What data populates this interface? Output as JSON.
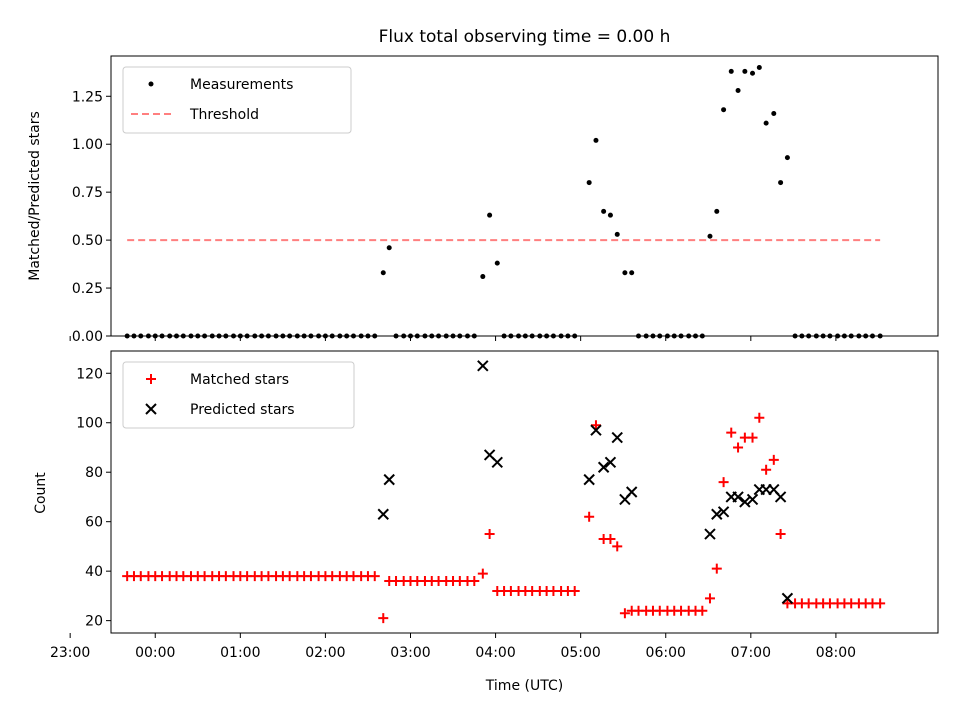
{
  "title": "Flux total observing time = 0.00 h",
  "colors": {
    "measurement": "#000000",
    "threshold": "#ff7f7f",
    "matched": "#ff0000",
    "predicted": "#000000"
  },
  "chart_data": [
    {
      "type": "scatter",
      "title": "Flux total observing time = 0.00 h",
      "xlabel": "",
      "ylabel": "Matched/Predicted stars",
      "x_unit": "hours from 00:00 UTC",
      "xlim": [
        -0.52,
        9.2
      ],
      "ylim": [
        0,
        1.46
      ],
      "yticks": [
        "0.00",
        "0.25",
        "0.50",
        "0.75",
        "1.00",
        "1.25"
      ],
      "legend": {
        "position": "top-left",
        "entries": [
          "Measurements",
          "Threshold"
        ]
      },
      "series": [
        {
          "name": "Measurements",
          "marker": "dot",
          "points": [
            [
              -0.33,
              0
            ],
            [
              -0.25,
              0
            ],
            [
              -0.17,
              0
            ],
            [
              -0.08,
              0
            ],
            [
              0.0,
              0
            ],
            [
              0.08,
              0
            ],
            [
              0.17,
              0
            ],
            [
              0.25,
              0
            ],
            [
              0.33,
              0
            ],
            [
              0.42,
              0
            ],
            [
              0.5,
              0
            ],
            [
              0.58,
              0
            ],
            [
              0.67,
              0
            ],
            [
              0.75,
              0
            ],
            [
              0.83,
              0
            ],
            [
              0.92,
              0
            ],
            [
              1.0,
              0
            ],
            [
              1.08,
              0
            ],
            [
              1.17,
              0
            ],
            [
              1.25,
              0
            ],
            [
              1.33,
              0
            ],
            [
              1.42,
              0
            ],
            [
              1.5,
              0
            ],
            [
              1.58,
              0
            ],
            [
              1.67,
              0
            ],
            [
              1.75,
              0
            ],
            [
              1.83,
              0
            ],
            [
              1.92,
              0
            ],
            [
              2.0,
              0
            ],
            [
              2.08,
              0
            ],
            [
              2.17,
              0
            ],
            [
              2.25,
              0
            ],
            [
              2.33,
              0
            ],
            [
              2.42,
              0
            ],
            [
              2.5,
              0
            ],
            [
              2.58,
              0
            ],
            [
              2.68,
              0.33
            ],
            [
              2.75,
              0.46
            ],
            [
              2.83,
              0
            ],
            [
              2.92,
              0
            ],
            [
              3.0,
              0
            ],
            [
              3.08,
              0
            ],
            [
              3.17,
              0
            ],
            [
              3.25,
              0
            ],
            [
              3.33,
              0
            ],
            [
              3.42,
              0
            ],
            [
              3.5,
              0
            ],
            [
              3.58,
              0
            ],
            [
              3.67,
              0
            ],
            [
              3.75,
              0
            ],
            [
              3.85,
              0.31
            ],
            [
              3.93,
              0.63
            ],
            [
              4.02,
              0.38
            ],
            [
              4.1,
              0
            ],
            [
              4.18,
              0
            ],
            [
              4.27,
              0
            ],
            [
              4.35,
              0
            ],
            [
              4.43,
              0
            ],
            [
              4.52,
              0
            ],
            [
              4.6,
              0
            ],
            [
              4.68,
              0
            ],
            [
              4.77,
              0
            ],
            [
              4.85,
              0
            ],
            [
              4.93,
              0
            ],
            [
              5.1,
              0.8
            ],
            [
              5.18,
              1.02
            ],
            [
              5.27,
              0.65
            ],
            [
              5.35,
              0.63
            ],
            [
              5.43,
              0.53
            ],
            [
              5.52,
              0.33
            ],
            [
              5.6,
              0.33
            ],
            [
              5.68,
              0
            ],
            [
              5.77,
              0
            ],
            [
              5.85,
              0
            ],
            [
              5.93,
              0
            ],
            [
              6.02,
              0
            ],
            [
              6.1,
              0
            ],
            [
              6.18,
              0
            ],
            [
              6.27,
              0
            ],
            [
              6.35,
              0
            ],
            [
              6.43,
              0
            ],
            [
              6.52,
              0.52
            ],
            [
              6.6,
              0.65
            ],
            [
              6.68,
              1.18
            ],
            [
              6.77,
              1.38
            ],
            [
              6.85,
              1.28
            ],
            [
              6.93,
              1.38
            ],
            [
              7.02,
              1.37
            ],
            [
              7.1,
              1.4
            ],
            [
              7.18,
              1.11
            ],
            [
              7.27,
              1.16
            ],
            [
              7.35,
              0.8
            ],
            [
              7.43,
              0.93
            ],
            [
              7.52,
              0
            ],
            [
              7.6,
              0
            ],
            [
              7.68,
              0
            ],
            [
              7.77,
              0
            ],
            [
              7.85,
              0
            ],
            [
              7.93,
              0
            ],
            [
              8.02,
              0
            ],
            [
              8.1,
              0
            ],
            [
              8.18,
              0
            ],
            [
              8.27,
              0
            ],
            [
              8.35,
              0
            ],
            [
              8.43,
              0
            ],
            [
              8.52,
              0
            ]
          ]
        },
        {
          "name": "Threshold",
          "line": "dashed",
          "points": [
            [
              -0.33,
              0.5
            ],
            [
              8.52,
              0.5
            ]
          ]
        }
      ]
    },
    {
      "type": "scatter",
      "title": "",
      "xlabel": "Time (UTC)",
      "ylabel": "Count",
      "x_unit": "hours from 00:00 UTC",
      "xlim": [
        -0.52,
        9.2
      ],
      "ylim": [
        15,
        129
      ],
      "yticks": [
        "20",
        "40",
        "60",
        "80",
        "100",
        "120"
      ],
      "xticks": [
        {
          "pos": -1,
          "label": "23:00"
        },
        {
          "pos": 0,
          "label": "00:00"
        },
        {
          "pos": 1,
          "label": "01:00"
        },
        {
          "pos": 2,
          "label": "02:00"
        },
        {
          "pos": 3,
          "label": "03:00"
        },
        {
          "pos": 4,
          "label": "04:00"
        },
        {
          "pos": 5,
          "label": "05:00"
        },
        {
          "pos": 6,
          "label": "06:00"
        },
        {
          "pos": 7,
          "label": "07:00"
        },
        {
          "pos": 8,
          "label": "08:00"
        }
      ],
      "legend": {
        "position": "top-left",
        "entries": [
          "Matched stars",
          "Predicted stars"
        ]
      },
      "series": [
        {
          "name": "Matched stars",
          "marker": "plus",
          "points": [
            [
              -0.33,
              38
            ],
            [
              -0.25,
              38
            ],
            [
              -0.17,
              38
            ],
            [
              -0.08,
              38
            ],
            [
              0.0,
              38
            ],
            [
              0.08,
              38
            ],
            [
              0.17,
              38
            ],
            [
              0.25,
              38
            ],
            [
              0.33,
              38
            ],
            [
              0.42,
              38
            ],
            [
              0.5,
              38
            ],
            [
              0.58,
              38
            ],
            [
              0.67,
              38
            ],
            [
              0.75,
              38
            ],
            [
              0.83,
              38
            ],
            [
              0.92,
              38
            ],
            [
              1.0,
              38
            ],
            [
              1.08,
              38
            ],
            [
              1.17,
              38
            ],
            [
              1.25,
              38
            ],
            [
              1.33,
              38
            ],
            [
              1.42,
              38
            ],
            [
              1.5,
              38
            ],
            [
              1.58,
              38
            ],
            [
              1.67,
              38
            ],
            [
              1.75,
              38
            ],
            [
              1.83,
              38
            ],
            [
              1.92,
              38
            ],
            [
              2.0,
              38
            ],
            [
              2.08,
              38
            ],
            [
              2.17,
              38
            ],
            [
              2.25,
              38
            ],
            [
              2.33,
              38
            ],
            [
              2.42,
              38
            ],
            [
              2.5,
              38
            ],
            [
              2.58,
              38
            ],
            [
              2.68,
              21
            ],
            [
              2.75,
              36
            ],
            [
              2.83,
              36
            ],
            [
              2.92,
              36
            ],
            [
              3.0,
              36
            ],
            [
              3.08,
              36
            ],
            [
              3.17,
              36
            ],
            [
              3.25,
              36
            ],
            [
              3.33,
              36
            ],
            [
              3.42,
              36
            ],
            [
              3.5,
              36
            ],
            [
              3.58,
              36
            ],
            [
              3.67,
              36
            ],
            [
              3.75,
              36
            ],
            [
              3.85,
              39
            ],
            [
              3.93,
              55
            ],
            [
              4.02,
              32
            ],
            [
              4.1,
              32
            ],
            [
              4.18,
              32
            ],
            [
              4.27,
              32
            ],
            [
              4.35,
              32
            ],
            [
              4.43,
              32
            ],
            [
              4.52,
              32
            ],
            [
              4.6,
              32
            ],
            [
              4.68,
              32
            ],
            [
              4.77,
              32
            ],
            [
              4.85,
              32
            ],
            [
              4.93,
              32
            ],
            [
              5.1,
              62
            ],
            [
              5.18,
              99
            ],
            [
              5.27,
              53
            ],
            [
              5.35,
              53
            ],
            [
              5.43,
              50
            ],
            [
              5.52,
              23
            ],
            [
              5.6,
              24
            ],
            [
              5.68,
              24
            ],
            [
              5.77,
              24
            ],
            [
              5.85,
              24
            ],
            [
              5.93,
              24
            ],
            [
              6.02,
              24
            ],
            [
              6.1,
              24
            ],
            [
              6.18,
              24
            ],
            [
              6.27,
              24
            ],
            [
              6.35,
              24
            ],
            [
              6.43,
              24
            ],
            [
              6.52,
              29
            ],
            [
              6.6,
              41
            ],
            [
              6.68,
              76
            ],
            [
              6.77,
              96
            ],
            [
              6.85,
              90
            ],
            [
              6.93,
              94
            ],
            [
              7.02,
              94
            ],
            [
              7.1,
              102
            ],
            [
              7.18,
              81
            ],
            [
              7.27,
              85
            ],
            [
              7.35,
              55
            ],
            [
              7.43,
              27
            ],
            [
              7.52,
              27
            ],
            [
              7.6,
              27
            ],
            [
              7.68,
              27
            ],
            [
              7.77,
              27
            ],
            [
              7.85,
              27
            ],
            [
              7.93,
              27
            ],
            [
              8.02,
              27
            ],
            [
              8.1,
              27
            ],
            [
              8.18,
              27
            ],
            [
              8.27,
              27
            ],
            [
              8.35,
              27
            ],
            [
              8.43,
              27
            ],
            [
              8.52,
              27
            ]
          ]
        },
        {
          "name": "Predicted stars",
          "marker": "x",
          "points": [
            [
              2.68,
              63
            ],
            [
              2.75,
              77
            ],
            [
              3.85,
              123
            ],
            [
              3.93,
              87
            ],
            [
              4.02,
              84
            ],
            [
              5.1,
              77
            ],
            [
              5.18,
              97
            ],
            [
              5.27,
              82
            ],
            [
              5.35,
              84
            ],
            [
              5.43,
              94
            ],
            [
              5.52,
              69
            ],
            [
              5.6,
              72
            ],
            [
              6.52,
              55
            ],
            [
              6.6,
              63
            ],
            [
              6.68,
              64
            ],
            [
              6.77,
              70
            ],
            [
              6.85,
              70
            ],
            [
              6.93,
              68
            ],
            [
              7.02,
              69
            ],
            [
              7.1,
              73
            ],
            [
              7.18,
              73
            ],
            [
              7.27,
              73
            ],
            [
              7.35,
              70
            ],
            [
              7.43,
              29
            ]
          ]
        }
      ]
    }
  ]
}
